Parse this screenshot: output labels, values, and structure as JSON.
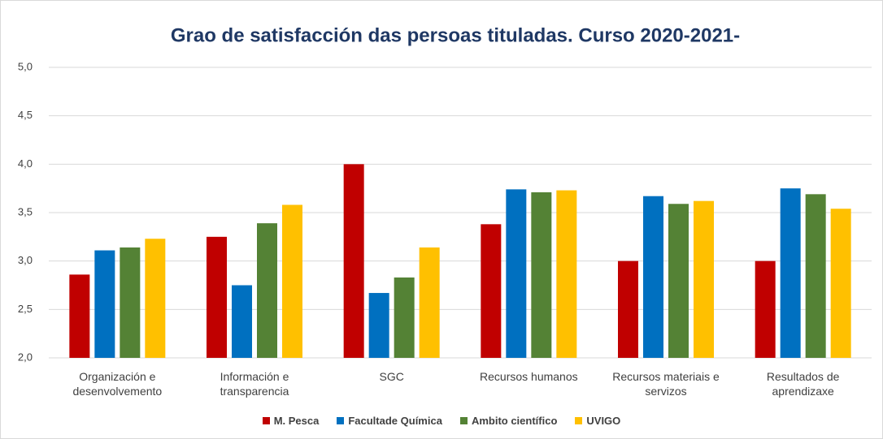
{
  "chart_data": {
    "type": "bar",
    "title": "Grao de satisfacción das persoas tituladas. Curso 2020-2021-",
    "categories": [
      "Organización e desenvolvemento",
      "Información e transparencia",
      "SGC",
      "Recursos humanos",
      "Recursos materiais e servizos",
      "Resultados de aprendizaxe"
    ],
    "series": [
      {
        "name": "M. Pesca",
        "color": "#c00000",
        "values": [
          2.86,
          3.25,
          4.0,
          3.38,
          3.0,
          3.0
        ]
      },
      {
        "name": "Facultade Química",
        "color": "#0070c0",
        "values": [
          3.11,
          2.75,
          2.67,
          3.74,
          3.67,
          3.75
        ]
      },
      {
        "name": "Ambito científico",
        "color": "#548235",
        "values": [
          3.14,
          3.39,
          2.83,
          3.71,
          3.59,
          3.69
        ]
      },
      {
        "name": "UVIGO",
        "color": "#ffc000",
        "values": [
          3.23,
          3.58,
          3.14,
          3.73,
          3.62,
          3.54
        ]
      }
    ],
    "ylim": [
      2,
      5
    ],
    "yticks": [
      {
        "value": 2,
        "label": "2,0"
      },
      {
        "value": 2.5,
        "label": "2,5"
      },
      {
        "value": 3,
        "label": "3,0"
      },
      {
        "value": 3.5,
        "label": "3,5"
      },
      {
        "value": 4,
        "label": "4,0"
      },
      {
        "value": 4.5,
        "label": "4,5"
      },
      {
        "value": 5,
        "label": "5,0"
      }
    ],
    "grid": true,
    "legend": "bottom"
  }
}
